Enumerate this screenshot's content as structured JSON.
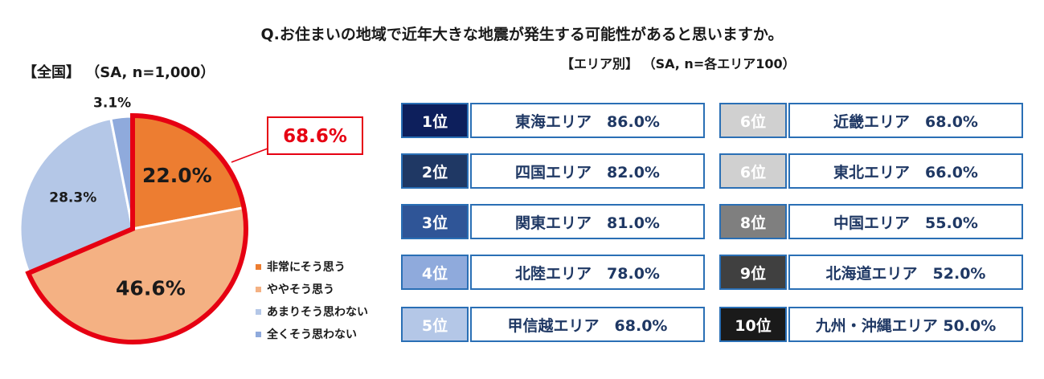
{
  "question": "Q.お住まいの地域で近年大きな地震が発生する可能性があると思いますか。",
  "national_label": "【全国】 （SA, n=1,000）",
  "area_label": "【エリア別】 （SA, n=各エリア100）",
  "pie_callout": "68.6%",
  "legend": [
    {
      "label": "非常にそう思う",
      "color": "#ed7d31"
    },
    {
      "label": "ややそう思う",
      "color": "#f4b183"
    },
    {
      "label": "あまりそう思わない",
      "color": "#b4c7e7"
    },
    {
      "label": "全くそう思わない",
      "color": "#8faadc"
    }
  ],
  "ranking_left": [
    {
      "rank": "1位",
      "area": "東海エリア　86.0%",
      "color": "#0d1f5c"
    },
    {
      "rank": "2位",
      "area": "四国エリア　82.0%",
      "color": "#1f3864"
    },
    {
      "rank": "3位",
      "area": "関東エリア　81.0%",
      "color": "#2f5597"
    },
    {
      "rank": "4位",
      "area": "北陸エリア　78.0%",
      "color": "#8faadc"
    },
    {
      "rank": "5位",
      "area": "甲信越エリア　68.0%",
      "color": "#b4c7e7"
    }
  ],
  "ranking_right": [
    {
      "rank": "6位",
      "area": "近畿エリア　68.0%",
      "color": "#d0d0d0"
    },
    {
      "rank": "6位",
      "area": "東北エリア　66.0%",
      "color": "#d0d0d0"
    },
    {
      "rank": "8位",
      "area": "中国エリア　55.0%",
      "color": "#7f7f7f"
    },
    {
      "rank": "9位",
      "area": "北海道エリア　52.0%",
      "color": "#404040"
    },
    {
      "rank": "10位",
      "area": "九州・沖縄エリア 50.0%",
      "color": "#1a1a1a"
    }
  ],
  "chart_data": {
    "type": "pie",
    "categories": [
      "非常にそう思う",
      "ややそう思う",
      "あまりそう思わない",
      "全くそう思わない"
    ],
    "values": [
      22.0,
      46.6,
      28.3,
      3.1
    ],
    "labels": [
      "22.0%",
      "46.6%",
      "28.3%",
      "3.1%"
    ],
    "colors": [
      "#ed7d31",
      "#f4b183",
      "#b4c7e7",
      "#8faadc"
    ],
    "highlight_total": "68.6%",
    "highlight_color": "#e60012"
  }
}
